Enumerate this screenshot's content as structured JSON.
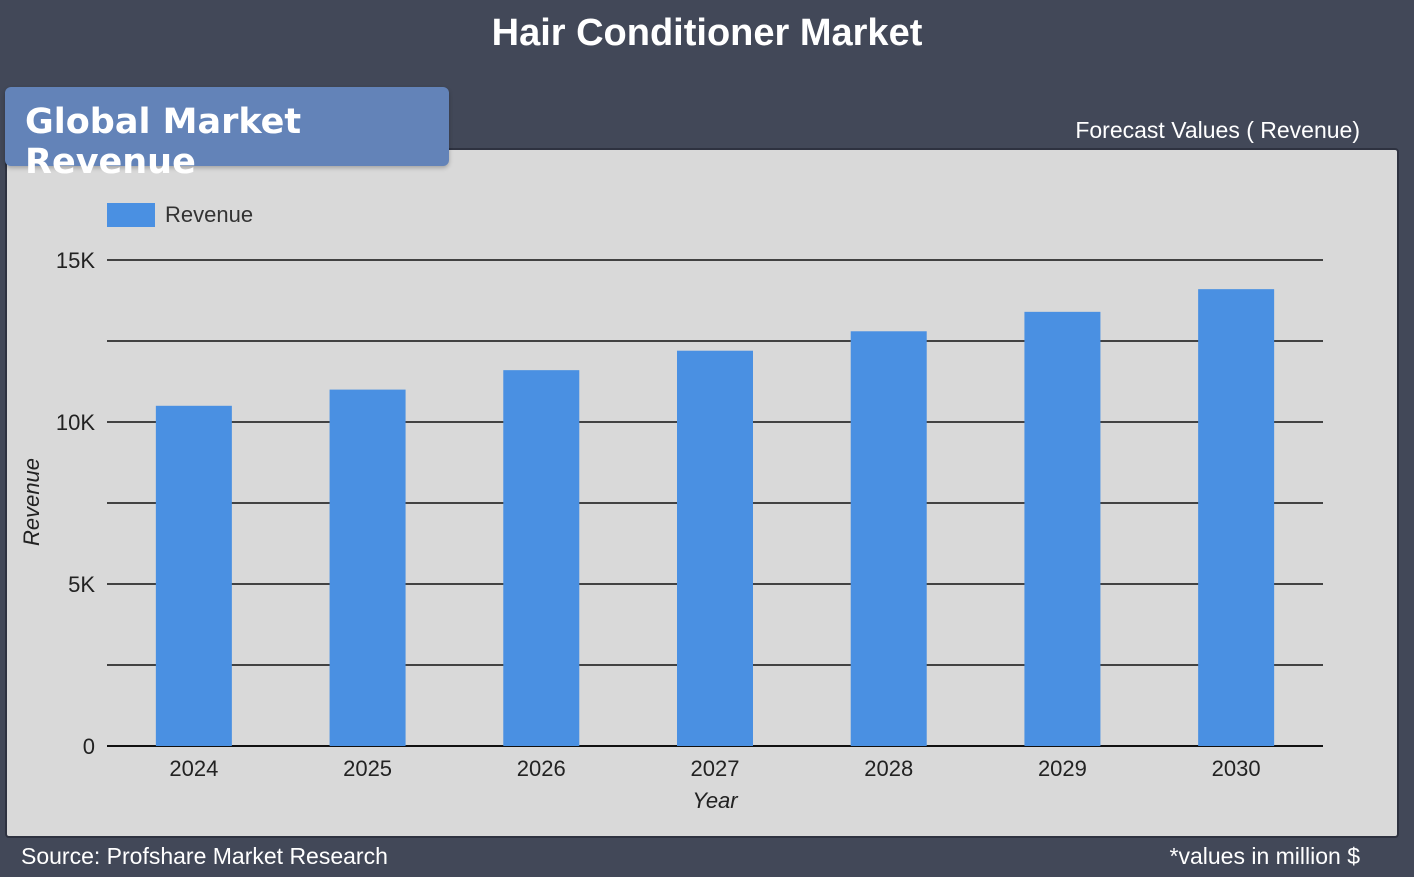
{
  "header": {
    "title": "Hair Conditioner Market",
    "section_label": "Global Market Revenue",
    "forecast_label": "Forecast Values ( Revenue)"
  },
  "footer": {
    "source": "Source: Profshare Market Research",
    "note": "*values in million $"
  },
  "colors": {
    "background": "#424858",
    "panel": "#d9d9d9",
    "tab": "#6383b8",
    "bar": "#4a90e2"
  },
  "chart_data": {
    "type": "bar",
    "title": "",
    "xlabel": "Year",
    "ylabel": "Revenue",
    "categories": [
      "2024",
      "2025",
      "2026",
      "2027",
      "2028",
      "2029",
      "2030"
    ],
    "series": [
      {
        "name": "Revenue",
        "values": [
          10500,
          11000,
          11600,
          12200,
          12800,
          13400,
          14100
        ]
      }
    ],
    "ylim": [
      0,
      15000
    ],
    "yticks": [
      {
        "value": 0,
        "label": "0"
      },
      {
        "value": 5000,
        "label": "5K"
      },
      {
        "value": 10000,
        "label": "10K"
      },
      {
        "value": 15000,
        "label": "15K"
      }
    ],
    "gridlines": [
      0,
      2500,
      5000,
      7500,
      10000,
      12500,
      15000
    ],
    "grid": true,
    "legend": "top-left"
  }
}
